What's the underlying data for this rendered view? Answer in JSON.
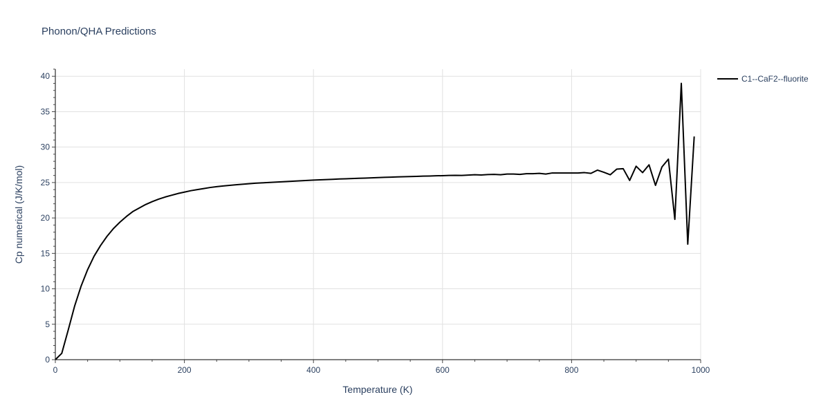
{
  "chart_data": {
    "type": "line",
    "title": "Phonon/QHA Predictions",
    "xlabel": "Temperature (K)",
    "ylabel": "Cp numerical (J/K/mol)",
    "xlim": [
      0,
      1000
    ],
    "ylim": [
      0,
      41
    ],
    "x_ticks": [
      0,
      200,
      400,
      600,
      800,
      1000
    ],
    "y_ticks": [
      0,
      5,
      10,
      15,
      20,
      25,
      30,
      35,
      40
    ],
    "grid": true,
    "legend_position": "top-right",
    "series": [
      {
        "name": "C1--CaF2--fluorite",
        "color": "#000000",
        "x": [
          0,
          10,
          20,
          30,
          40,
          50,
          60,
          70,
          80,
          90,
          100,
          110,
          120,
          130,
          140,
          150,
          160,
          170,
          180,
          190,
          200,
          210,
          220,
          230,
          240,
          250,
          260,
          270,
          280,
          290,
          300,
          310,
          320,
          330,
          340,
          350,
          360,
          370,
          380,
          390,
          400,
          410,
          420,
          430,
          440,
          450,
          460,
          470,
          480,
          490,
          500,
          510,
          520,
          530,
          540,
          550,
          560,
          570,
          580,
          590,
          600,
          610,
          620,
          630,
          640,
          650,
          660,
          670,
          680,
          690,
          700,
          710,
          720,
          730,
          740,
          750,
          760,
          770,
          780,
          790,
          800,
          810,
          820,
          830,
          840,
          850,
          860,
          870,
          880,
          890,
          900,
          910,
          920,
          930,
          940,
          950,
          960,
          970,
          980,
          990
        ],
        "y": [
          0,
          0.9,
          4.2,
          7.6,
          10.4,
          12.7,
          14.6,
          16.1,
          17.4,
          18.5,
          19.4,
          20.2,
          20.9,
          21.4,
          21.9,
          22.3,
          22.65,
          22.95,
          23.2,
          23.45,
          23.65,
          23.85,
          24.0,
          24.15,
          24.3,
          24.42,
          24.52,
          24.6,
          24.68,
          24.76,
          24.83,
          24.9,
          24.95,
          25.0,
          25.05,
          25.1,
          25.15,
          25.2,
          25.25,
          25.3,
          25.35,
          25.38,
          25.42,
          25.46,
          25.5,
          25.53,
          25.56,
          25.6,
          25.63,
          25.66,
          25.7,
          25.73,
          25.76,
          25.79,
          25.82,
          25.85,
          25.87,
          25.9,
          25.92,
          25.95,
          25.97,
          26.0,
          26.02,
          26.0,
          26.05,
          26.1,
          26.07,
          26.12,
          26.15,
          26.1,
          26.2,
          26.2,
          26.15,
          26.25,
          26.25,
          26.3,
          26.2,
          26.35,
          26.35,
          26.35,
          26.35,
          26.35,
          26.4,
          26.3,
          26.75,
          26.45,
          26.1,
          26.9,
          26.95,
          25.3,
          27.3,
          26.4,
          27.5,
          24.6,
          27.2,
          28.3,
          19.8,
          39.0,
          16.3,
          31.5
        ]
      }
    ]
  }
}
